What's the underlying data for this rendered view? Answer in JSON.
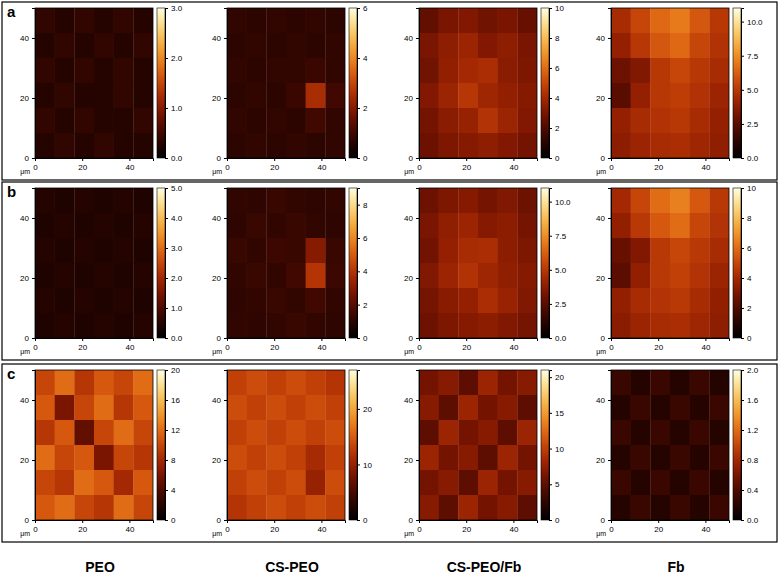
{
  "row_labels": [
    "a",
    "b",
    "c"
  ],
  "column_labels": [
    "PEO",
    "CS-PEO",
    "CS-PEO/Fb",
    "Fb"
  ],
  "chart_data": [
    {
      "type": "heatmap",
      "x_label": "μm",
      "xlim": [
        0,
        50
      ],
      "xticks": [
        0,
        20,
        40
      ],
      "ylim": [
        0,
        50
      ],
      "yticks": [
        0,
        20,
        40
      ],
      "cells": [
        [
          0.4,
          0.3,
          0.4,
          0.3,
          0.4,
          0.3
        ],
        [
          0.3,
          0.4,
          0.3,
          0.4,
          0.3,
          0.4
        ],
        [
          0.4,
          0.3,
          0.4,
          0.3,
          0.4,
          0.3
        ],
        [
          0.3,
          0.4,
          0.3,
          0.3,
          0.4,
          0.3
        ],
        [
          0.4,
          0.3,
          0.4,
          0.3,
          0.3,
          0.4
        ],
        [
          0.3,
          0.4,
          0.3,
          0.4,
          0.3,
          0.3
        ]
      ],
      "color_range": [
        0,
        3
      ],
      "color_ticks": [
        {
          "value": 0,
          "label": "0.0"
        },
        {
          "value": 1,
          "label": "1.0"
        },
        {
          "value": 2,
          "label": "2.0"
        },
        {
          "value": 3,
          "label": "3.0"
        }
      ]
    },
    {
      "type": "heatmap",
      "x_label": "μm",
      "xlim": [
        0,
        50
      ],
      "xticks": [
        0,
        20,
        40
      ],
      "ylim": [
        0,
        50
      ],
      "yticks": [
        0,
        20,
        40
      ],
      "cells": [
        [
          0.8,
          0.7,
          0.8,
          0.7,
          0.8,
          0.7
        ],
        [
          0.7,
          0.8,
          0.7,
          0.8,
          0.7,
          0.8
        ],
        [
          0.8,
          0.7,
          0.8,
          0.8,
          0.9,
          0.8
        ],
        [
          0.7,
          0.8,
          0.7,
          0.9,
          2.5,
          1.0
        ],
        [
          0.8,
          0.7,
          0.8,
          0.7,
          1.0,
          0.8
        ],
        [
          0.7,
          0.8,
          0.7,
          0.8,
          0.7,
          0.8
        ]
      ],
      "color_range": [
        0,
        6
      ],
      "color_ticks": [
        0,
        2,
        4,
        6
      ]
    },
    {
      "type": "heatmap",
      "x_label": "μm",
      "xlim": [
        0,
        50
      ],
      "xticks": [
        0,
        20,
        40
      ],
      "ylim": [
        0,
        50
      ],
      "yticks": [
        0,
        20,
        40
      ],
      "cells": [
        [
          2.5,
          3.0,
          3.2,
          2.8,
          3.0,
          2.6
        ],
        [
          3.0,
          3.5,
          3.8,
          3.2,
          3.5,
          3.0
        ],
        [
          2.8,
          3.6,
          4.0,
          4.2,
          3.4,
          3.1
        ],
        [
          3.2,
          3.8,
          4.5,
          3.9,
          3.6,
          3.3
        ],
        [
          2.9,
          3.4,
          3.7,
          4.4,
          3.8,
          3.2
        ],
        [
          2.7,
          3.1,
          3.3,
          3.5,
          3.2,
          2.9
        ]
      ],
      "color_range": [
        0,
        10
      ],
      "color_ticks": [
        0,
        2,
        4,
        6,
        8,
        10
      ]
    },
    {
      "type": "heatmap",
      "x_label": "μm",
      "xlim": [
        0,
        50
      ],
      "xticks": [
        0,
        20,
        40
      ],
      "ylim": [
        0,
        50
      ],
      "yticks": [
        0,
        20,
        40
      ],
      "cells": [
        [
          4.5,
          5.5,
          6.5,
          7.0,
          6.0,
          5.0
        ],
        [
          4.0,
          5.0,
          6.0,
          6.5,
          5.5,
          4.8
        ],
        [
          3.0,
          3.5,
          5.0,
          5.5,
          5.0,
          4.5
        ],
        [
          2.5,
          4.0,
          5.0,
          5.2,
          4.8,
          4.2
        ],
        [
          4.0,
          4.5,
          4.8,
          5.0,
          4.5,
          4.0
        ],
        [
          3.8,
          4.2,
          4.5,
          4.6,
          4.3,
          3.9
        ]
      ],
      "color_range": [
        0,
        11
      ],
      "color_ticks": [
        {
          "value": 0,
          "label": "0.0"
        },
        {
          "value": 2.5,
          "label": "2.5"
        },
        {
          "value": 5,
          "label": "5.0"
        },
        {
          "value": 7.5,
          "label": "7.5"
        },
        {
          "value": 10,
          "label": "10.0"
        }
      ]
    },
    {
      "type": "heatmap",
      "x_label": "μm",
      "xlim": [
        0,
        50
      ],
      "xticks": [
        0,
        20,
        40
      ],
      "ylim": [
        0,
        50
      ],
      "yticks": [
        0,
        20,
        40
      ],
      "cells": [
        [
          0.5,
          0.4,
          0.5,
          0.4,
          0.5,
          0.4
        ],
        [
          0.4,
          0.5,
          0.4,
          0.5,
          0.4,
          0.5
        ],
        [
          0.5,
          0.4,
          0.5,
          0.4,
          0.5,
          0.4
        ],
        [
          0.4,
          0.5,
          0.4,
          0.5,
          0.4,
          0.5
        ],
        [
          0.5,
          0.4,
          0.5,
          0.4,
          0.5,
          0.4
        ],
        [
          0.4,
          0.5,
          0.4,
          0.5,
          0.4,
          0.5
        ]
      ],
      "color_range": [
        0,
        5
      ],
      "color_ticks": [
        {
          "value": 0,
          "label": "0.0"
        },
        {
          "value": 1,
          "label": "1.0"
        },
        {
          "value": 2,
          "label": "2.0"
        },
        {
          "value": 3,
          "label": "3.0"
        },
        {
          "value": 4,
          "label": "4.0"
        },
        {
          "value": 5,
          "label": "5.0"
        }
      ]
    },
    {
      "type": "heatmap",
      "x_label": "μm",
      "xlim": [
        0,
        50
      ],
      "xticks": [
        0,
        20,
        40
      ],
      "ylim": [
        0,
        50
      ],
      "yticks": [
        0,
        20,
        40
      ],
      "cells": [
        [
          1.2,
          1.1,
          1.3,
          1.2,
          1.1,
          1.2
        ],
        [
          1.1,
          1.3,
          1.2,
          1.3,
          1.2,
          1.1
        ],
        [
          1.3,
          1.2,
          1.4,
          1.3,
          3.0,
          1.3
        ],
        [
          1.2,
          1.3,
          1.2,
          1.5,
          4.0,
          1.4
        ],
        [
          1.1,
          1.2,
          1.3,
          1.2,
          1.5,
          1.2
        ],
        [
          1.2,
          1.1,
          1.2,
          1.3,
          1.2,
          1.1
        ]
      ],
      "color_range": [
        0,
        9
      ],
      "color_ticks": [
        0,
        2,
        4,
        6,
        8
      ]
    },
    {
      "type": "heatmap",
      "x_label": "μm",
      "xlim": [
        0,
        50
      ],
      "xticks": [
        0,
        20,
        40
      ],
      "ylim": [
        0,
        50
      ],
      "yticks": [
        0,
        20,
        40
      ],
      "cells": [
        [
          3.0,
          3.4,
          3.6,
          3.2,
          3.5,
          3.0
        ],
        [
          3.3,
          3.9,
          4.2,
          3.6,
          3.8,
          3.2
        ],
        [
          3.1,
          4.0,
          4.5,
          4.6,
          3.8,
          3.4
        ],
        [
          3.5,
          4.2,
          4.8,
          4.3,
          3.9,
          3.6
        ],
        [
          3.2,
          3.7,
          4.0,
          4.6,
          4.1,
          3.5
        ],
        [
          3.0,
          3.4,
          3.6,
          3.8,
          3.5,
          3.2
        ]
      ],
      "color_range": [
        0,
        11
      ],
      "color_ticks": [
        {
          "value": 0,
          "label": "0.0"
        },
        {
          "value": 2.5,
          "label": "2.5"
        },
        {
          "value": 5,
          "label": "5.0"
        },
        {
          "value": 7.5,
          "label": "7.5"
        },
        {
          "value": 10,
          "label": "10.0"
        }
      ]
    },
    {
      "type": "heatmap",
      "x_label": "μm",
      "xlim": [
        0,
        50
      ],
      "xticks": [
        0,
        20,
        40
      ],
      "ylim": [
        0,
        50
      ],
      "yticks": [
        0,
        20,
        40
      ],
      "cells": [
        [
          4.0,
          5.0,
          6.0,
          6.5,
          5.5,
          4.6
        ],
        [
          3.6,
          4.6,
          5.5,
          6.0,
          5.0,
          4.4
        ],
        [
          2.6,
          3.2,
          4.6,
          5.0,
          4.6,
          4.1
        ],
        [
          2.3,
          3.6,
          4.6,
          4.8,
          4.4,
          3.8
        ],
        [
          3.6,
          4.1,
          4.4,
          4.6,
          4.1,
          3.6
        ],
        [
          3.4,
          3.8,
          4.1,
          4.2,
          3.9,
          3.5
        ]
      ],
      "color_range": [
        0,
        10
      ],
      "color_ticks": [
        0,
        2,
        4,
        6,
        8,
        10
      ]
    },
    {
      "type": "heatmap",
      "x_label": "μm",
      "xlim": [
        0,
        50
      ],
      "xticks": [
        0,
        20,
        40
      ],
      "ylim": [
        0,
        50
      ],
      "yticks": [
        0,
        20,
        40
      ],
      "cells": [
        [
          10,
          12,
          9,
          11,
          10,
          12
        ],
        [
          11,
          6,
          10,
          12,
          9,
          11
        ],
        [
          9,
          11,
          5,
          10,
          12,
          10
        ],
        [
          12,
          10,
          11,
          6,
          10,
          9
        ],
        [
          10,
          9,
          12,
          11,
          8,
          11
        ],
        [
          11,
          12,
          10,
          9,
          12,
          10
        ]
      ],
      "color_range": [
        0,
        20
      ],
      "color_ticks": [
        0,
        4,
        8,
        12,
        16,
        20
      ]
    },
    {
      "type": "heatmap",
      "x_label": "μm",
      "xlim": [
        0,
        50
      ],
      "xticks": [
        0,
        20,
        40
      ],
      "ylim": [
        0,
        50
      ],
      "yticks": [
        0,
        20,
        40
      ],
      "cells": [
        [
          13,
          14,
          13,
          14,
          13,
          12
        ],
        [
          14,
          13,
          14,
          13,
          14,
          13
        ],
        [
          13,
          14,
          13,
          14,
          13,
          14
        ],
        [
          14,
          13,
          14,
          13,
          11,
          13
        ],
        [
          13,
          14,
          13,
          14,
          10,
          14
        ],
        [
          12,
          13,
          14,
          13,
          14,
          13
        ]
      ],
      "color_range": [
        0,
        27
      ],
      "color_ticks": [
        0,
        10,
        20
      ]
    },
    {
      "type": "heatmap",
      "x_label": "μm",
      "xlim": [
        0,
        50
      ],
      "xticks": [
        0,
        20,
        40
      ],
      "ylim": [
        0,
        50
      ],
      "yticks": [
        0,
        20,
        40
      ],
      "cells": [
        [
          6,
          7,
          5,
          8,
          6,
          7
        ],
        [
          7,
          5,
          8,
          6,
          7,
          5
        ],
        [
          5,
          8,
          6,
          7,
          5,
          8
        ],
        [
          8,
          6,
          7,
          5,
          8,
          6
        ],
        [
          6,
          7,
          5,
          8,
          6,
          7
        ],
        [
          7,
          5,
          8,
          6,
          7,
          5
        ]
      ],
      "color_range": [
        0,
        21
      ],
      "color_ticks": [
        0,
        5,
        10,
        15,
        20
      ]
    },
    {
      "type": "heatmap",
      "x_label": "μm",
      "xlim": [
        0,
        50
      ],
      "xticks": [
        0,
        20,
        40
      ],
      "ylim": [
        0,
        50
      ],
      "yticks": [
        0,
        20,
        40
      ],
      "cells": [
        [
          0.3,
          0.2,
          0.3,
          0.2,
          0.3,
          0.2
        ],
        [
          0.2,
          0.3,
          0.2,
          0.3,
          0.2,
          0.3
        ],
        [
          0.3,
          0.2,
          0.3,
          0.2,
          0.3,
          0.2
        ],
        [
          0.2,
          0.3,
          0.2,
          0.3,
          0.2,
          0.3
        ],
        [
          0.3,
          0.2,
          0.3,
          0.2,
          0.3,
          0.2
        ],
        [
          0.2,
          0.3,
          0.2,
          0.3,
          0.2,
          0.3
        ]
      ],
      "color_range": [
        0,
        2
      ],
      "color_ticks": [
        {
          "value": 0,
          "label": "0.0"
        },
        {
          "value": 0.4,
          "label": "0.4"
        },
        {
          "value": 0.8,
          "label": "0.8"
        },
        {
          "value": 1.2,
          "label": "1.2"
        },
        {
          "value": 1.6,
          "label": "1.6"
        },
        {
          "value": 2,
          "label": "2.0"
        }
      ]
    }
  ]
}
